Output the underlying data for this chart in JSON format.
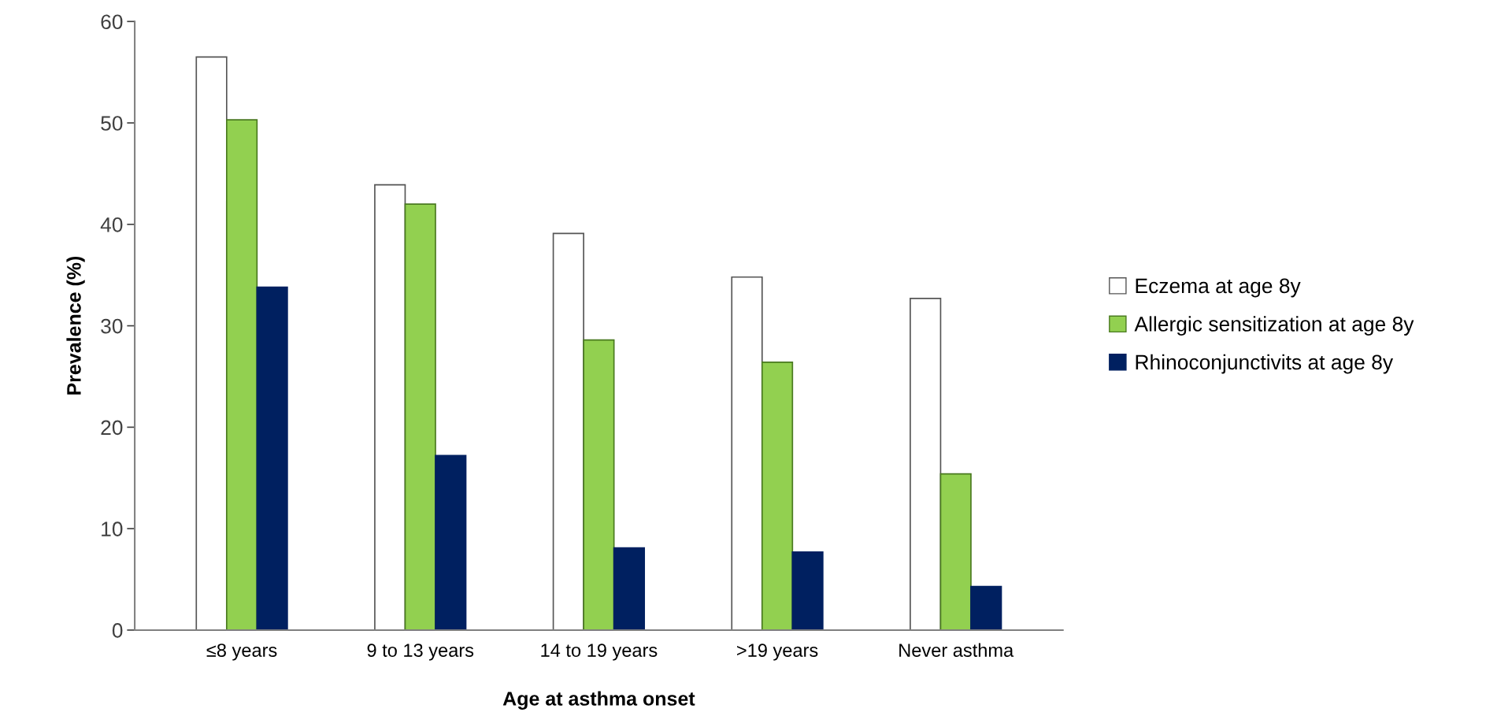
{
  "chart_data": {
    "type": "bar",
    "xlabel": "Age at asthma onset",
    "ylabel": "Prevalence (%)",
    "categories": [
      "≤8 years",
      "9 to 13 years",
      "14 to 19 years",
      ">19 years",
      "Never asthma"
    ],
    "series": [
      {
        "name": "Eczema at age 8y",
        "color": "#ffffff",
        "values": [
          56.5,
          43.9,
          39.1,
          34.8,
          32.7
        ]
      },
      {
        "name": "Allergic sensitization at age 8y",
        "color": "#92d050",
        "values": [
          50.3,
          42.0,
          28.6,
          26.4,
          15.4
        ]
      },
      {
        "name": "Rhinoconjunctivits at age 8y",
        "color": "#002060",
        "values": [
          33.8,
          17.2,
          8.1,
          7.7,
          4.3
        ]
      }
    ],
    "ylim": [
      0,
      60
    ],
    "yticks": [
      0,
      10,
      20,
      30,
      40,
      50,
      60
    ],
    "grid": false,
    "legend": "right"
  }
}
